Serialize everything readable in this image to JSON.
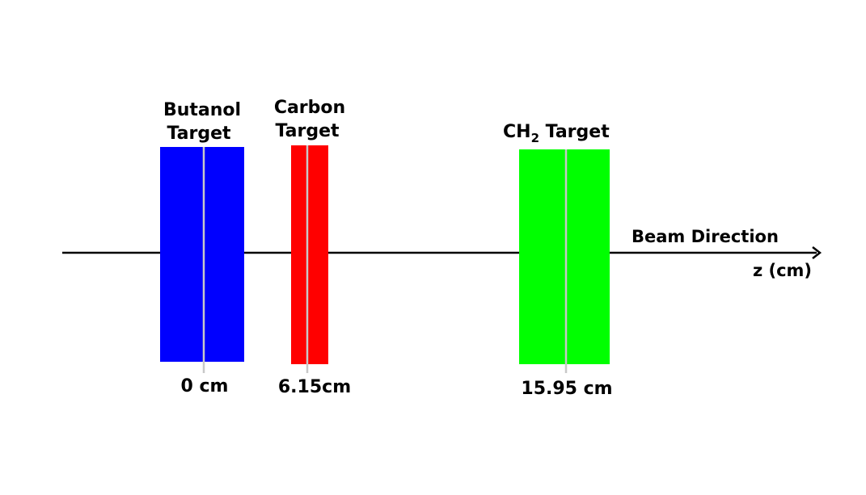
{
  "colors": {
    "background": "#ffffff",
    "axis": "#000000",
    "center_line": "#c8c8c8",
    "butanol": "#0000ff",
    "carbon": "#ff0000",
    "ch2": "#00ff00"
  },
  "beam": {
    "direction_label": "Beam Direction",
    "axis_label": "z (cm)"
  },
  "targets": [
    {
      "name_line1": "Butanol",
      "name_line2": "Target",
      "position_label": "0 cm",
      "color": "#0000ff"
    },
    {
      "name_line1": "Carbon",
      "name_line2": "Target",
      "position_label": "6.15cm",
      "color": "#ff0000"
    },
    {
      "name_main": "CH",
      "name_sub": "2",
      "name_rest": " Target",
      "position_label": "15.95 cm",
      "color": "#00ff00"
    }
  ]
}
